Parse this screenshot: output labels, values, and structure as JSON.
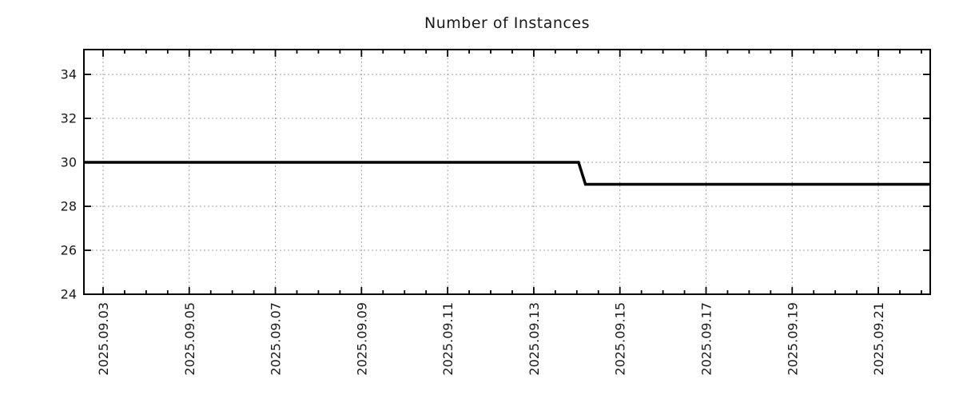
{
  "chart_data": {
    "type": "line",
    "title": "Number of Instances",
    "legend_position": "none",
    "grid": "dotted",
    "line_color": "#000000",
    "grid_color": "#a0a0a0",
    "text_color": "#1a1a1a",
    "border_color": "#000000",
    "y_ticks": [
      24,
      26,
      28,
      30,
      32,
      34
    ],
    "x_ticks": [
      {
        "label": "2025.09.03",
        "day_offset": 0
      },
      {
        "label": "2025.09.05",
        "day_offset": 2
      },
      {
        "label": "2025.09.07",
        "day_offset": 4
      },
      {
        "label": "2025.09.09",
        "day_offset": 6
      },
      {
        "label": "2025.09.11",
        "day_offset": 8
      },
      {
        "label": "2025.09.13",
        "day_offset": 10
      },
      {
        "label": "2025.09.15",
        "day_offset": 12
      },
      {
        "label": "2025.09.17",
        "day_offset": 14
      },
      {
        "label": "2025.09.19",
        "day_offset": 16
      },
      {
        "label": "2025.09.21",
        "day_offset": 18
      }
    ],
    "x_minor_tick_interval_days": 0.5,
    "x_range_days": [
      -0.445,
      19.205
    ],
    "y_range": [
      24,
      35.13
    ],
    "series": [
      {
        "name": "Number of Instances",
        "points": [
          {
            "date": "2025.09.02 13:00",
            "day_offset": -0.445,
            "value": 30
          },
          {
            "date": "2025.09.14 01:00",
            "day_offset": 11.04,
            "value": 30
          },
          {
            "date": "2025.09.14 05:00",
            "day_offset": 11.2,
            "value": 29
          },
          {
            "date": "2025.09.22 05:00",
            "day_offset": 19.205,
            "value": 29
          }
        ]
      }
    ]
  }
}
